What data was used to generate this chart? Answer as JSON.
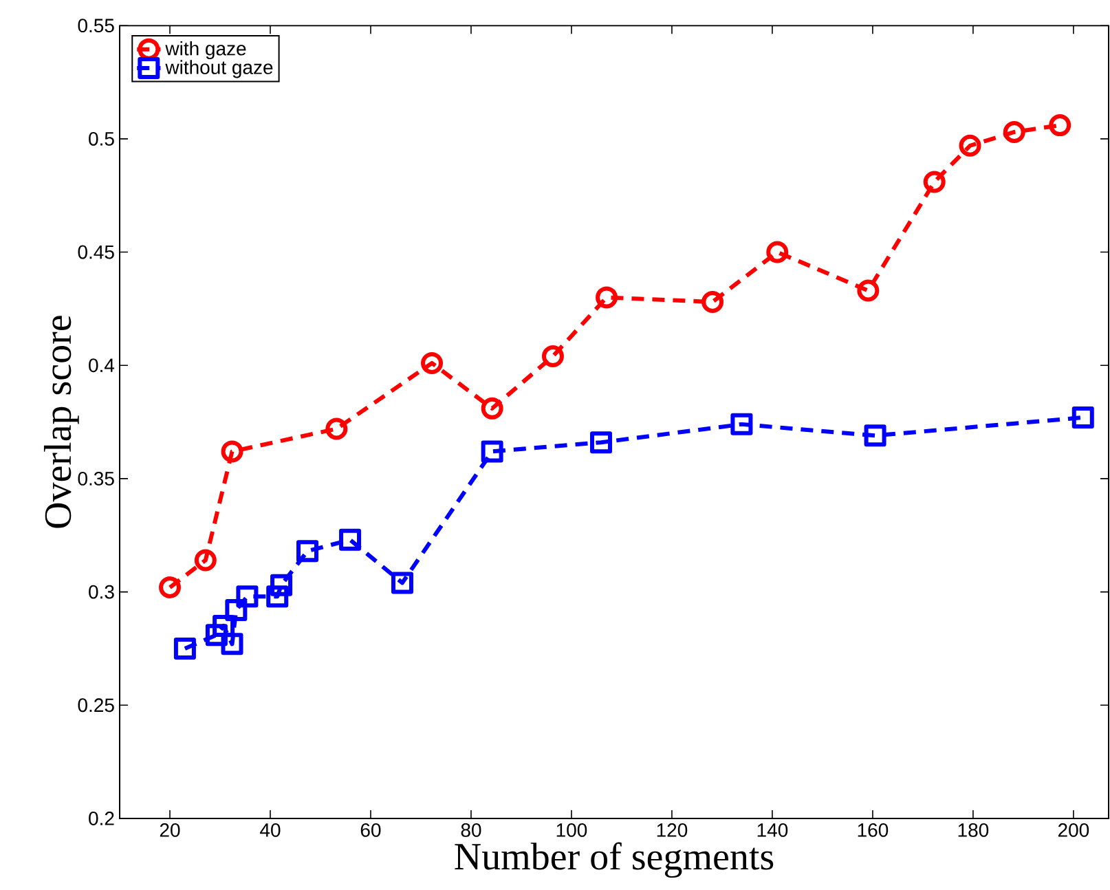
{
  "chart_data": {
    "type": "line",
    "xlabel": "Number of segments",
    "ylabel": "Overlap score",
    "xlim": [
      10,
      207
    ],
    "xticks": [
      20,
      40,
      60,
      80,
      100,
      120,
      140,
      160,
      180,
      200
    ],
    "ylim": [
      0.2,
      0.55
    ],
    "yticks": [
      0.2,
      0.25,
      0.3,
      0.35,
      0.4,
      0.45,
      0.5,
      0.55
    ],
    "legend": "top left",
    "line_style": "dashed",
    "series": [
      {
        "name": "with gaze",
        "color": "#ff0000",
        "marker": "circle",
        "x": [
          20,
          27.1,
          32.4,
          53.2,
          72.2,
          84.2,
          96.3,
          107,
          128.1,
          141,
          159.1,
          172.3,
          179.4,
          188.2,
          197.3
        ],
        "values": [
          0.302,
          0.314,
          0.362,
          0.372,
          0.401,
          0.381,
          0.404,
          0.43,
          0.428,
          0.45,
          0.433,
          0.481,
          0.497,
          0.503,
          0.506
        ]
      },
      {
        "name": "without gaze",
        "color": "#0000ff",
        "marker": "square",
        "x": [
          23,
          29.3,
          30.7,
          32.4,
          33.2,
          35.4,
          41.4,
          42.2,
          47.4,
          55.9,
          66.3,
          84.2,
          105.9,
          133.9,
          160.5,
          201.9
        ],
        "values": [
          0.275,
          0.281,
          0.285,
          0.277,
          0.292,
          0.298,
          0.298,
          0.303,
          0.318,
          0.323,
          0.304,
          0.362,
          0.366,
          0.374,
          0.369,
          0.377
        ]
      }
    ]
  }
}
